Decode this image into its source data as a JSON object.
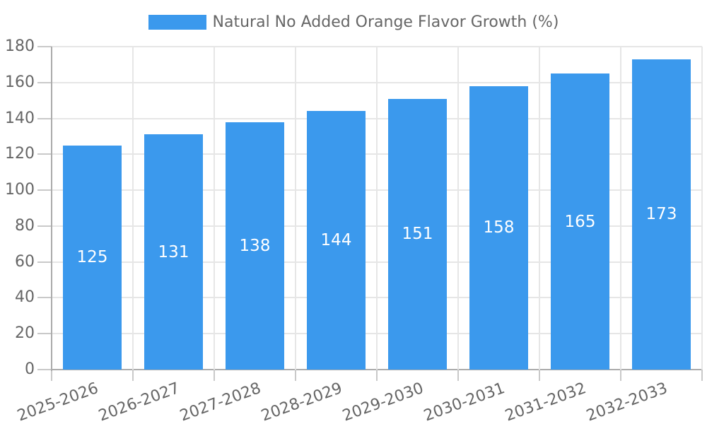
{
  "chart_data": {
    "type": "bar",
    "title": "Natural No Added Orange Flavor Growth (%)",
    "legend": [
      {
        "label": "Natural No Added Orange Flavor Growth (%)",
        "color": "#3B99ED"
      }
    ],
    "legend_position": "top",
    "categories": [
      "2025-2026",
      "2026-2027",
      "2027-2028",
      "2028-2029",
      "2029-2030",
      "2030-2031",
      "2031-2032",
      "2032-2033"
    ],
    "values": [
      125,
      131,
      138,
      144,
      151,
      158,
      165,
      173
    ],
    "bar_value_labels_shown": true,
    "xlabel": "",
    "ylabel": "",
    "ylim": [
      0,
      180
    ],
    "yticks": [
      0,
      20,
      40,
      60,
      80,
      100,
      120,
      140,
      160,
      180
    ],
    "grid": true,
    "x_tick_rotation_deg": -20,
    "colors": {
      "bar": "#3B99ED",
      "grid": "#E6E6E6",
      "axis": "#ABABAB",
      "tick": "#C9C9C9",
      "text": "#666666",
      "bar_label": "#FFFFFF",
      "background": "#FFFFFF"
    }
  }
}
